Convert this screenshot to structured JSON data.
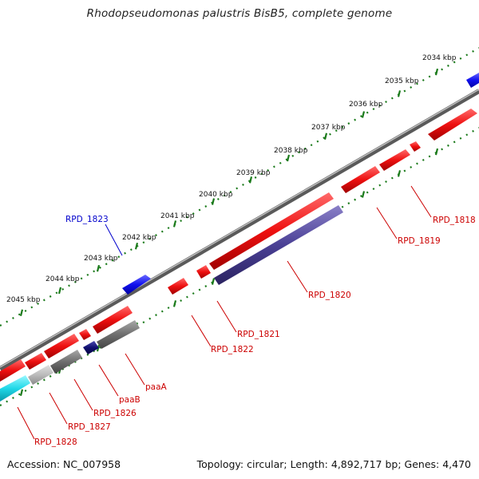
{
  "title": "Rhodopseudomonas palustris BisB5, complete genome",
  "footer": {
    "accession": "Accession: NC_007958",
    "summary": "Topology: circular; Length: 4,892,717 bp; Genes: 4,470"
  },
  "ticks": [
    "2034 kbp",
    "2035 kbp",
    "2036 kbp",
    "2037 kbp",
    "2038 kbp",
    "2039 kbp",
    "2040 kbp",
    "2041 kbp",
    "2042 kbp",
    "2043 kbp",
    "2044 kbp",
    "2045 kbp"
  ],
  "colors": {
    "backbone": "#8a8a8a",
    "tick": "#1a7a1a",
    "cds": "#e01010",
    "rna": "#1010e0",
    "highlight": "#4a4095",
    "gray": "#707070",
    "light_gray": "#b8b8b8",
    "cyan": "#20d8e8",
    "navy": "#101070"
  },
  "genes": [
    {
      "label": "RPD_1818",
      "color": "#cc0000"
    },
    {
      "label": "RPD_1819",
      "color": "#cc0000"
    },
    {
      "label": "RPD_1820",
      "color": "#cc0000"
    },
    {
      "label": "RPD_1821",
      "color": "#cc0000"
    },
    {
      "label": "RPD_1822",
      "color": "#cc0000"
    },
    {
      "label": "RPD_1823",
      "color": "#0000cc"
    },
    {
      "label": "paaA",
      "color": "#cc0000"
    },
    {
      "label": "paaB",
      "color": "#cc0000"
    },
    {
      "label": "RPD_1826",
      "color": "#cc0000"
    },
    {
      "label": "RPD_1827",
      "color": "#cc0000"
    },
    {
      "label": "RPD_1828",
      "color": "#cc0000"
    }
  ]
}
